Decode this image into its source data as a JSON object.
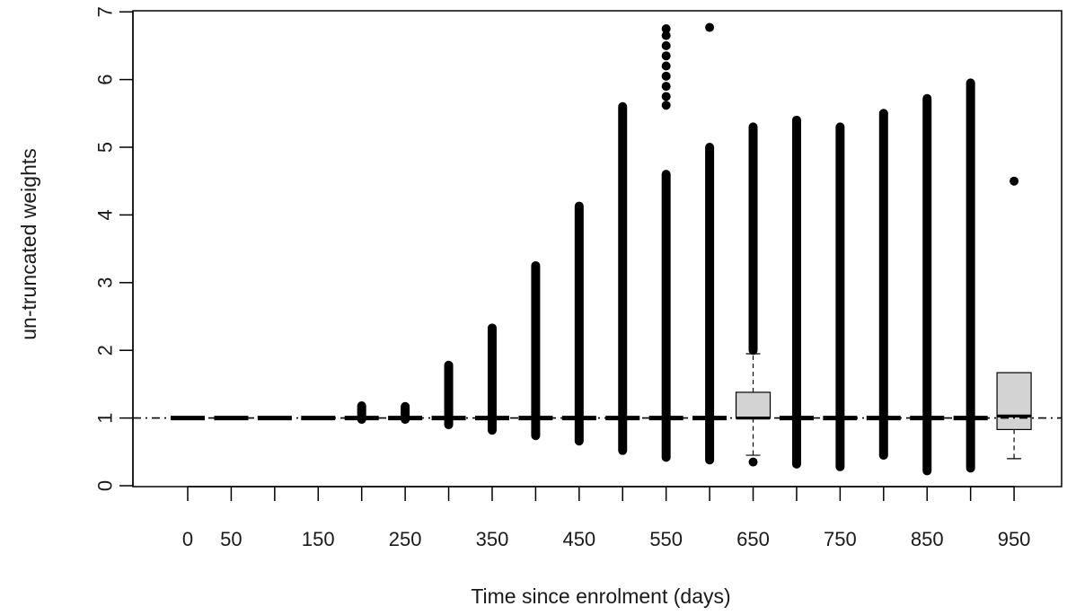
{
  "chart_data": {
    "type": "boxplot",
    "title": "",
    "xlabel": "Time since enrolment (days)",
    "ylabel": "un-truncated weights",
    "ylim": [
      0,
      7
    ],
    "y_ticks": [
      0,
      1,
      2,
      3,
      4,
      5,
      6,
      7
    ],
    "x_tick_labels": [
      "0",
      "50",
      "150",
      "250",
      "350",
      "450",
      "550",
      "650",
      "750",
      "850",
      "950"
    ],
    "reference_line": {
      "y": 1,
      "style": "dash-dot"
    },
    "colors": {
      "box_fill": "#d3d3d3",
      "points": "#000000",
      "axis": "#000000"
    },
    "groups": [
      {
        "x": 0,
        "q1": 1,
        "median": 1,
        "q3": 1,
        "whisker_low": 1,
        "whisker_high": 1,
        "outlier_range": [],
        "outliers": []
      },
      {
        "x": 50,
        "q1": 1,
        "median": 1,
        "q3": 1,
        "whisker_low": 1,
        "whisker_high": 1,
        "outlier_range": [],
        "outliers": []
      },
      {
        "x": 100,
        "q1": 1,
        "median": 1,
        "q3": 1,
        "whisker_low": 1,
        "whisker_high": 1,
        "outlier_range": [],
        "outliers": []
      },
      {
        "x": 150,
        "q1": 1,
        "median": 1,
        "q3": 1,
        "whisker_low": 1,
        "whisker_high": 1,
        "outlier_range": [],
        "outliers": []
      },
      {
        "x": 200,
        "q1": 1,
        "median": 1,
        "q3": 1,
        "whisker_low": 1,
        "whisker_high": 1,
        "outlier_range": [
          0.98,
          1.18
        ],
        "outliers": []
      },
      {
        "x": 250,
        "q1": 1,
        "median": 1,
        "q3": 1,
        "whisker_low": 1,
        "whisker_high": 1,
        "outlier_range": [
          0.98,
          1.17
        ],
        "outliers": []
      },
      {
        "x": 300,
        "q1": 1,
        "median": 1,
        "q3": 1,
        "whisker_low": 1,
        "whisker_high": 1,
        "outlier_range": [
          0.9,
          1.78
        ],
        "outliers": []
      },
      {
        "x": 350,
        "q1": 1,
        "median": 1,
        "q3": 1,
        "whisker_low": 1,
        "whisker_high": 1,
        "outlier_range": [
          0.82,
          2.33
        ],
        "outliers": []
      },
      {
        "x": 400,
        "q1": 1,
        "median": 1,
        "q3": 1,
        "whisker_low": 1,
        "whisker_high": 1,
        "outlier_range": [
          0.74,
          3.25
        ],
        "outliers": []
      },
      {
        "x": 450,
        "q1": 1,
        "median": 1,
        "q3": 1,
        "whisker_low": 1,
        "whisker_high": 1,
        "outlier_range": [
          0.66,
          4.13
        ],
        "outliers": []
      },
      {
        "x": 500,
        "q1": 1,
        "median": 1,
        "q3": 1,
        "whisker_low": 1,
        "whisker_high": 1,
        "outlier_range": [
          0.52,
          5.6
        ],
        "outliers": []
      },
      {
        "x": 550,
        "q1": 1,
        "median": 1,
        "q3": 1,
        "whisker_low": 1,
        "whisker_high": 1,
        "outlier_range": [
          0.42,
          4.6
        ],
        "outliers": [
          5.62,
          5.75,
          5.9,
          6.05,
          6.2,
          6.35,
          6.5,
          6.65,
          6.75
        ]
      },
      {
        "x": 600,
        "q1": 1,
        "median": 1,
        "q3": 1,
        "whisker_low": 1,
        "whisker_high": 1,
        "outlier_range": [
          0.38,
          5.0
        ],
        "outliers": [
          6.77
        ]
      },
      {
        "x": 650,
        "q1": 1,
        "median": 1,
        "q3": 1.38,
        "whisker_low": 0.45,
        "whisker_high": 1.95,
        "outlier_range": [
          2.0,
          5.3
        ],
        "outliers": [
          0.35
        ]
      },
      {
        "x": 700,
        "q1": 1,
        "median": 1,
        "q3": 1,
        "whisker_low": 1,
        "whisker_high": 1,
        "outlier_range": [
          0.32,
          5.4
        ],
        "outliers": []
      },
      {
        "x": 750,
        "q1": 1,
        "median": 1,
        "q3": 1,
        "whisker_low": 1,
        "whisker_high": 1,
        "outlier_range": [
          0.28,
          5.3
        ],
        "outliers": []
      },
      {
        "x": 800,
        "q1": 1,
        "median": 1,
        "q3": 1,
        "whisker_low": 1,
        "whisker_high": 1,
        "outlier_range": [
          0.45,
          5.5
        ],
        "outliers": []
      },
      {
        "x": 850,
        "q1": 1,
        "median": 1,
        "q3": 1,
        "whisker_low": 1,
        "whisker_high": 1,
        "outlier_range": [
          0.22,
          5.72
        ],
        "outliers": []
      },
      {
        "x": 900,
        "q1": 1,
        "median": 1,
        "q3": 1,
        "whisker_low": 1,
        "whisker_high": 1,
        "outlier_range": [
          0.26,
          5.95
        ],
        "outliers": []
      },
      {
        "x": 950,
        "q1": 0.83,
        "median": 1.03,
        "q3": 1.67,
        "whisker_low": 0.4,
        "whisker_high": 1.67,
        "outlier_range": [],
        "outliers": [
          4.5
        ]
      }
    ]
  }
}
